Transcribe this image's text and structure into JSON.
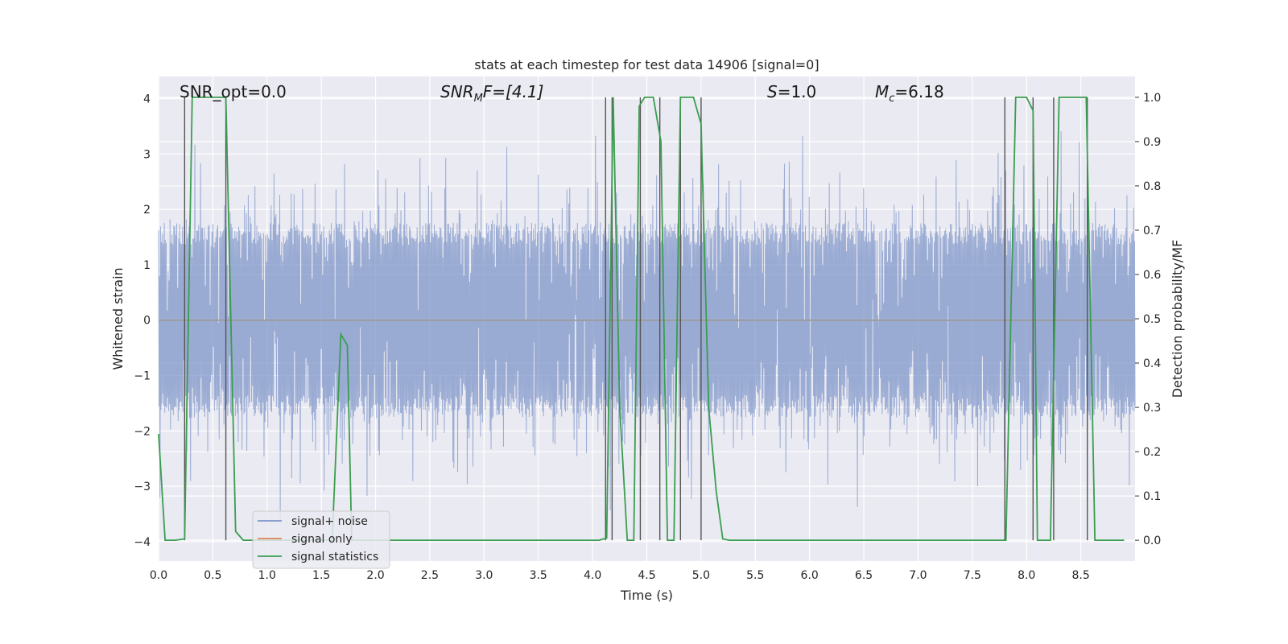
{
  "chart_data": {
    "type": "line",
    "title": "stats at each timestep for test data 14906 [signal=0]",
    "xlabel": "Time (s)",
    "ylabel": "Whitened strain",
    "y2label": "Detection probability/MF",
    "xlim": [
      0.0,
      9.0
    ],
    "ylim": [
      -4.35,
      4.4
    ],
    "y2lim": [
      -0.047,
      1.047
    ],
    "x_ticks": [
      "0.0",
      "0.5",
      "1.0",
      "1.5",
      "2.0",
      "2.5",
      "3.0",
      "3.5",
      "4.0",
      "4.5",
      "5.0",
      "5.5",
      "6.0",
      "6.5",
      "7.0",
      "7.5",
      "8.0",
      "8.5"
    ],
    "y_ticks": [
      "4",
      "3",
      "2",
      "1",
      "0",
      "−1",
      "−2",
      "−3",
      "−4"
    ],
    "y2_ticks": [
      "1.0",
      "0.9",
      "0.8",
      "0.7",
      "0.6",
      "0.5",
      "0.4",
      "0.3",
      "0.2",
      "0.1",
      "0.0"
    ],
    "annotations": {
      "snr_opt": "SNR_opt=0.0",
      "snr_mf_base": "SNR",
      "snr_mf_sub": "M",
      "snr_mf_tail": "F=[4.1]",
      "s_base": "S",
      "s_tail": "=1.0",
      "mc_base": "M",
      "mc_sub": "c",
      "mc_tail": "=6.18"
    },
    "legend": {
      "location": "lower-left",
      "entries": [
        "signal+ noise",
        "signal only",
        "signal statistics"
      ]
    },
    "colors": {
      "noise": "#7f96c8",
      "signal_only": "#dd8452",
      "statistics": "#3a9d4f",
      "marker": "#555555",
      "background": "#eaeaf2",
      "grid": "#ffffff"
    },
    "noise_series": {
      "name": "signal+ noise",
      "n_samples": 2048,
      "core_amplitude": 1.6,
      "max_amplitude": 3.9,
      "note": "dense white-noise strain trace"
    },
    "signal_only_series": {
      "name": "signal only",
      "values": [
        0,
        0
      ],
      "x": [
        0.0,
        9.0
      ]
    },
    "statistics_series": {
      "name": "signal statistics",
      "x": [
        0.0,
        0.06,
        0.15,
        0.24,
        0.31,
        0.62,
        0.71,
        0.78,
        1.6,
        1.68,
        1.74,
        1.78,
        1.9,
        4.06,
        4.13,
        4.19,
        4.25,
        4.32,
        4.38,
        4.43,
        4.48,
        4.56,
        4.63,
        4.69,
        4.75,
        4.81,
        4.93,
        5.0,
        5.07,
        5.14,
        5.2,
        5.26,
        7.81,
        7.9,
        8.0,
        8.06,
        8.1,
        8.16,
        8.22,
        8.3,
        8.55,
        8.63,
        8.9
      ],
      "values": [
        0.24,
        0.0,
        0.0,
        0.003,
        1.0,
        1.0,
        0.02,
        0.0,
        0.0,
        0.465,
        0.44,
        0.0,
        0.0,
        0.0,
        0.005,
        1.0,
        0.3,
        0.0,
        0.0,
        0.98,
        1.0,
        1.0,
        0.9,
        0.0,
        0.0,
        1.0,
        1.0,
        0.94,
        0.3,
        0.11,
        0.003,
        0.0,
        0.0,
        1.0,
        1.0,
        0.97,
        0.0,
        0.0,
        0.0,
        1.0,
        1.0,
        0.0,
        0.0
      ]
    },
    "detection_markers_x": [
      0.24,
      0.62,
      4.12,
      4.18,
      4.44,
      4.62,
      4.81,
      5.0,
      7.8,
      8.06,
      8.25,
      8.56
    ]
  }
}
